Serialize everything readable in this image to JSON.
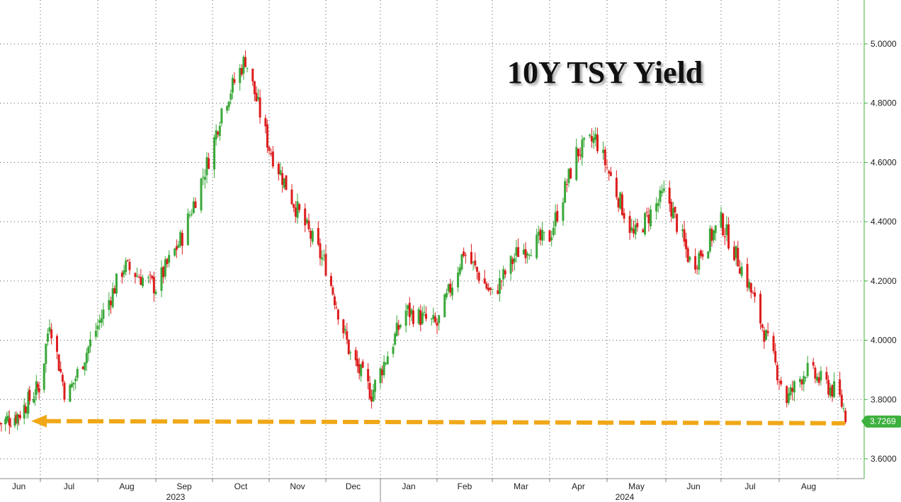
{
  "chart_data": {
    "type": "candlestick",
    "title": "10Y TSY Yield",
    "ylim": [
      3.55,
      5.15
    ],
    "y_ticks": [
      3.6,
      3.8,
      4.0,
      4.2,
      4.4,
      4.6,
      4.8,
      5.0
    ],
    "y_tick_labels": [
      "3.6000",
      "3.8000",
      "4.0000",
      "4.2000",
      "4.4000",
      "4.6000",
      "4.8000",
      "5.0000"
    ],
    "x_month_labels": [
      "Jun",
      "Jul",
      "Aug",
      "Sep",
      "Oct",
      "Nov",
      "Dec",
      "Jan",
      "Feb",
      "Mar",
      "Apr",
      "May",
      "Jun",
      "Jul",
      "Aug"
    ],
    "x_year_labels": [
      "2023",
      "2024"
    ],
    "grid": true,
    "last_value": 3.7269,
    "last_value_label": "3.7269",
    "reference_level": 3.72,
    "series": {
      "dates": [
        "2023-06-01",
        "2023-06-15",
        "2023-07-01",
        "2023-07-06",
        "2023-07-15",
        "2023-08-01",
        "2023-08-15",
        "2023-09-01",
        "2023-09-15",
        "2023-10-01",
        "2023-10-06",
        "2023-10-19",
        "2023-11-01",
        "2023-11-15",
        "2023-12-01",
        "2023-12-15",
        "2023-12-27",
        "2024-01-15",
        "2024-02-01",
        "2024-02-15",
        "2024-03-01",
        "2024-03-15",
        "2024-04-01",
        "2024-04-15",
        "2024-04-25",
        "2024-05-15",
        "2024-06-01",
        "2024-06-15",
        "2024-07-01",
        "2024-07-15",
        "2024-08-05",
        "2024-08-15",
        "2024-09-01",
        "2024-09-06"
      ],
      "close": [
        3.72,
        3.75,
        3.85,
        4.07,
        3.8,
        4.05,
        4.25,
        4.18,
        4.35,
        4.65,
        4.78,
        4.95,
        4.65,
        4.45,
        4.25,
        3.95,
        3.82,
        4.1,
        4.05,
        4.3,
        4.15,
        4.3,
        4.35,
        4.63,
        4.68,
        4.35,
        4.5,
        4.25,
        4.4,
        4.2,
        3.8,
        3.9,
        3.82,
        3.73
      ]
    }
  }
}
